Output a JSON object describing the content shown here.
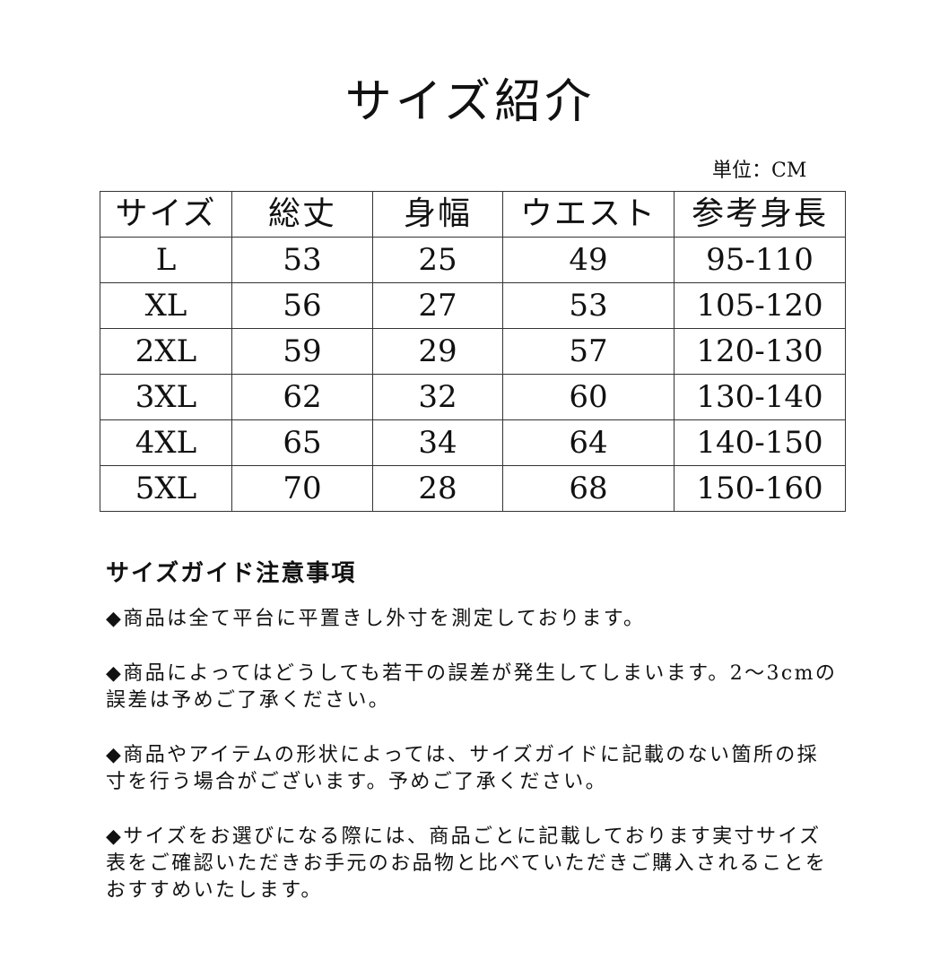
{
  "title": "サイズ紹介",
  "unit": "単位：CM",
  "table": {
    "headers": [
      "サイズ",
      "総丈",
      "身幅",
      "ウエスト",
      "参考身長"
    ],
    "rows": [
      [
        "L",
        "53",
        "25",
        "49",
        "95-110"
      ],
      [
        "XL",
        "56",
        "27",
        "53",
        "105-120"
      ],
      [
        "2XL",
        "59",
        "29",
        "57",
        "120-130"
      ],
      [
        "3XL",
        "62",
        "32",
        "60",
        "130-140"
      ],
      [
        "4XL",
        "65",
        "34",
        "64",
        "140-150"
      ],
      [
        "5XL",
        "70",
        "28",
        "68",
        "150-160"
      ]
    ]
  },
  "notes": {
    "heading": "サイズガイド注意事項",
    "paragraphs": [
      [
        "◆商品は全て平台に平置きし外寸を測定しております。"
      ],
      [
        "◆商品によってはどうしても若干の誤差が発生してしまいます。2～3cmの",
        "誤差は予めご了承ください。"
      ],
      [
        "◆商品やアイテムの形状によっては、サイズガイドに記載のない箇所の採",
        "寸を行う場合がございます。予めご了承ください。"
      ],
      [
        "◆サイズをお選びになる際には、商品ごとに記載しております実寸サイズ",
        "表をご確認いただきお手元のお品物と比べていただきご購入されることを",
        "おすすめいたします。"
      ]
    ]
  }
}
